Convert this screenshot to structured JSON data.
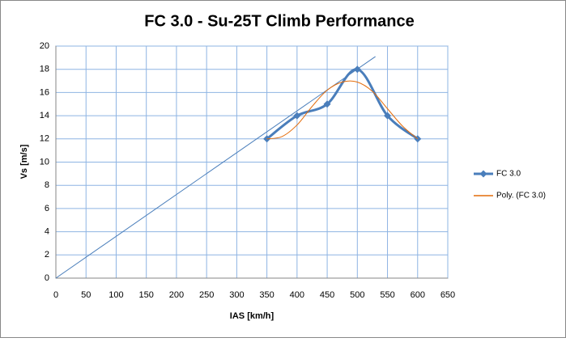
{
  "chart_data": {
    "type": "line",
    "title": "FC 3.0 - Su-25T Climb Performance",
    "x_label": "IAS [km/h]",
    "y_label": "Vs [m/s]",
    "series": [
      {
        "name": "FC 3.0",
        "color": "#4a7ebb",
        "smooth": true,
        "marker": "diamond",
        "x": [
          350,
          400,
          450,
          500,
          550,
          600
        ],
        "values": [
          12,
          14,
          15,
          18,
          14,
          12
        ]
      },
      {
        "name": "Poly. (FC 3.0)",
        "color": "#e46c0a",
        "smooth": true,
        "x": [
          350,
          375,
          400,
          425,
          450,
          475,
          500,
          525,
          550,
          575,
          600
        ],
        "values": [
          12,
          12.2,
          13.2,
          14.8,
          16.2,
          16.9,
          16.9,
          16.1,
          14.6,
          13.1,
          12
        ]
      },
      {
        "color": "#4a7ebb",
        "x": [
          0,
          530
        ],
        "values": [
          0,
          19.1
        ]
      }
    ],
    "xlim": [
      0,
      650
    ],
    "xticks": [
      0,
      50,
      100,
      150,
      200,
      250,
      300,
      350,
      400,
      450,
      500,
      550,
      600,
      650
    ],
    "ylim": [
      0,
      20
    ],
    "yticks": [
      0,
      2,
      4,
      6,
      8,
      10,
      12,
      14,
      16,
      18,
      20
    ],
    "grid": true,
    "legend": "right"
  }
}
